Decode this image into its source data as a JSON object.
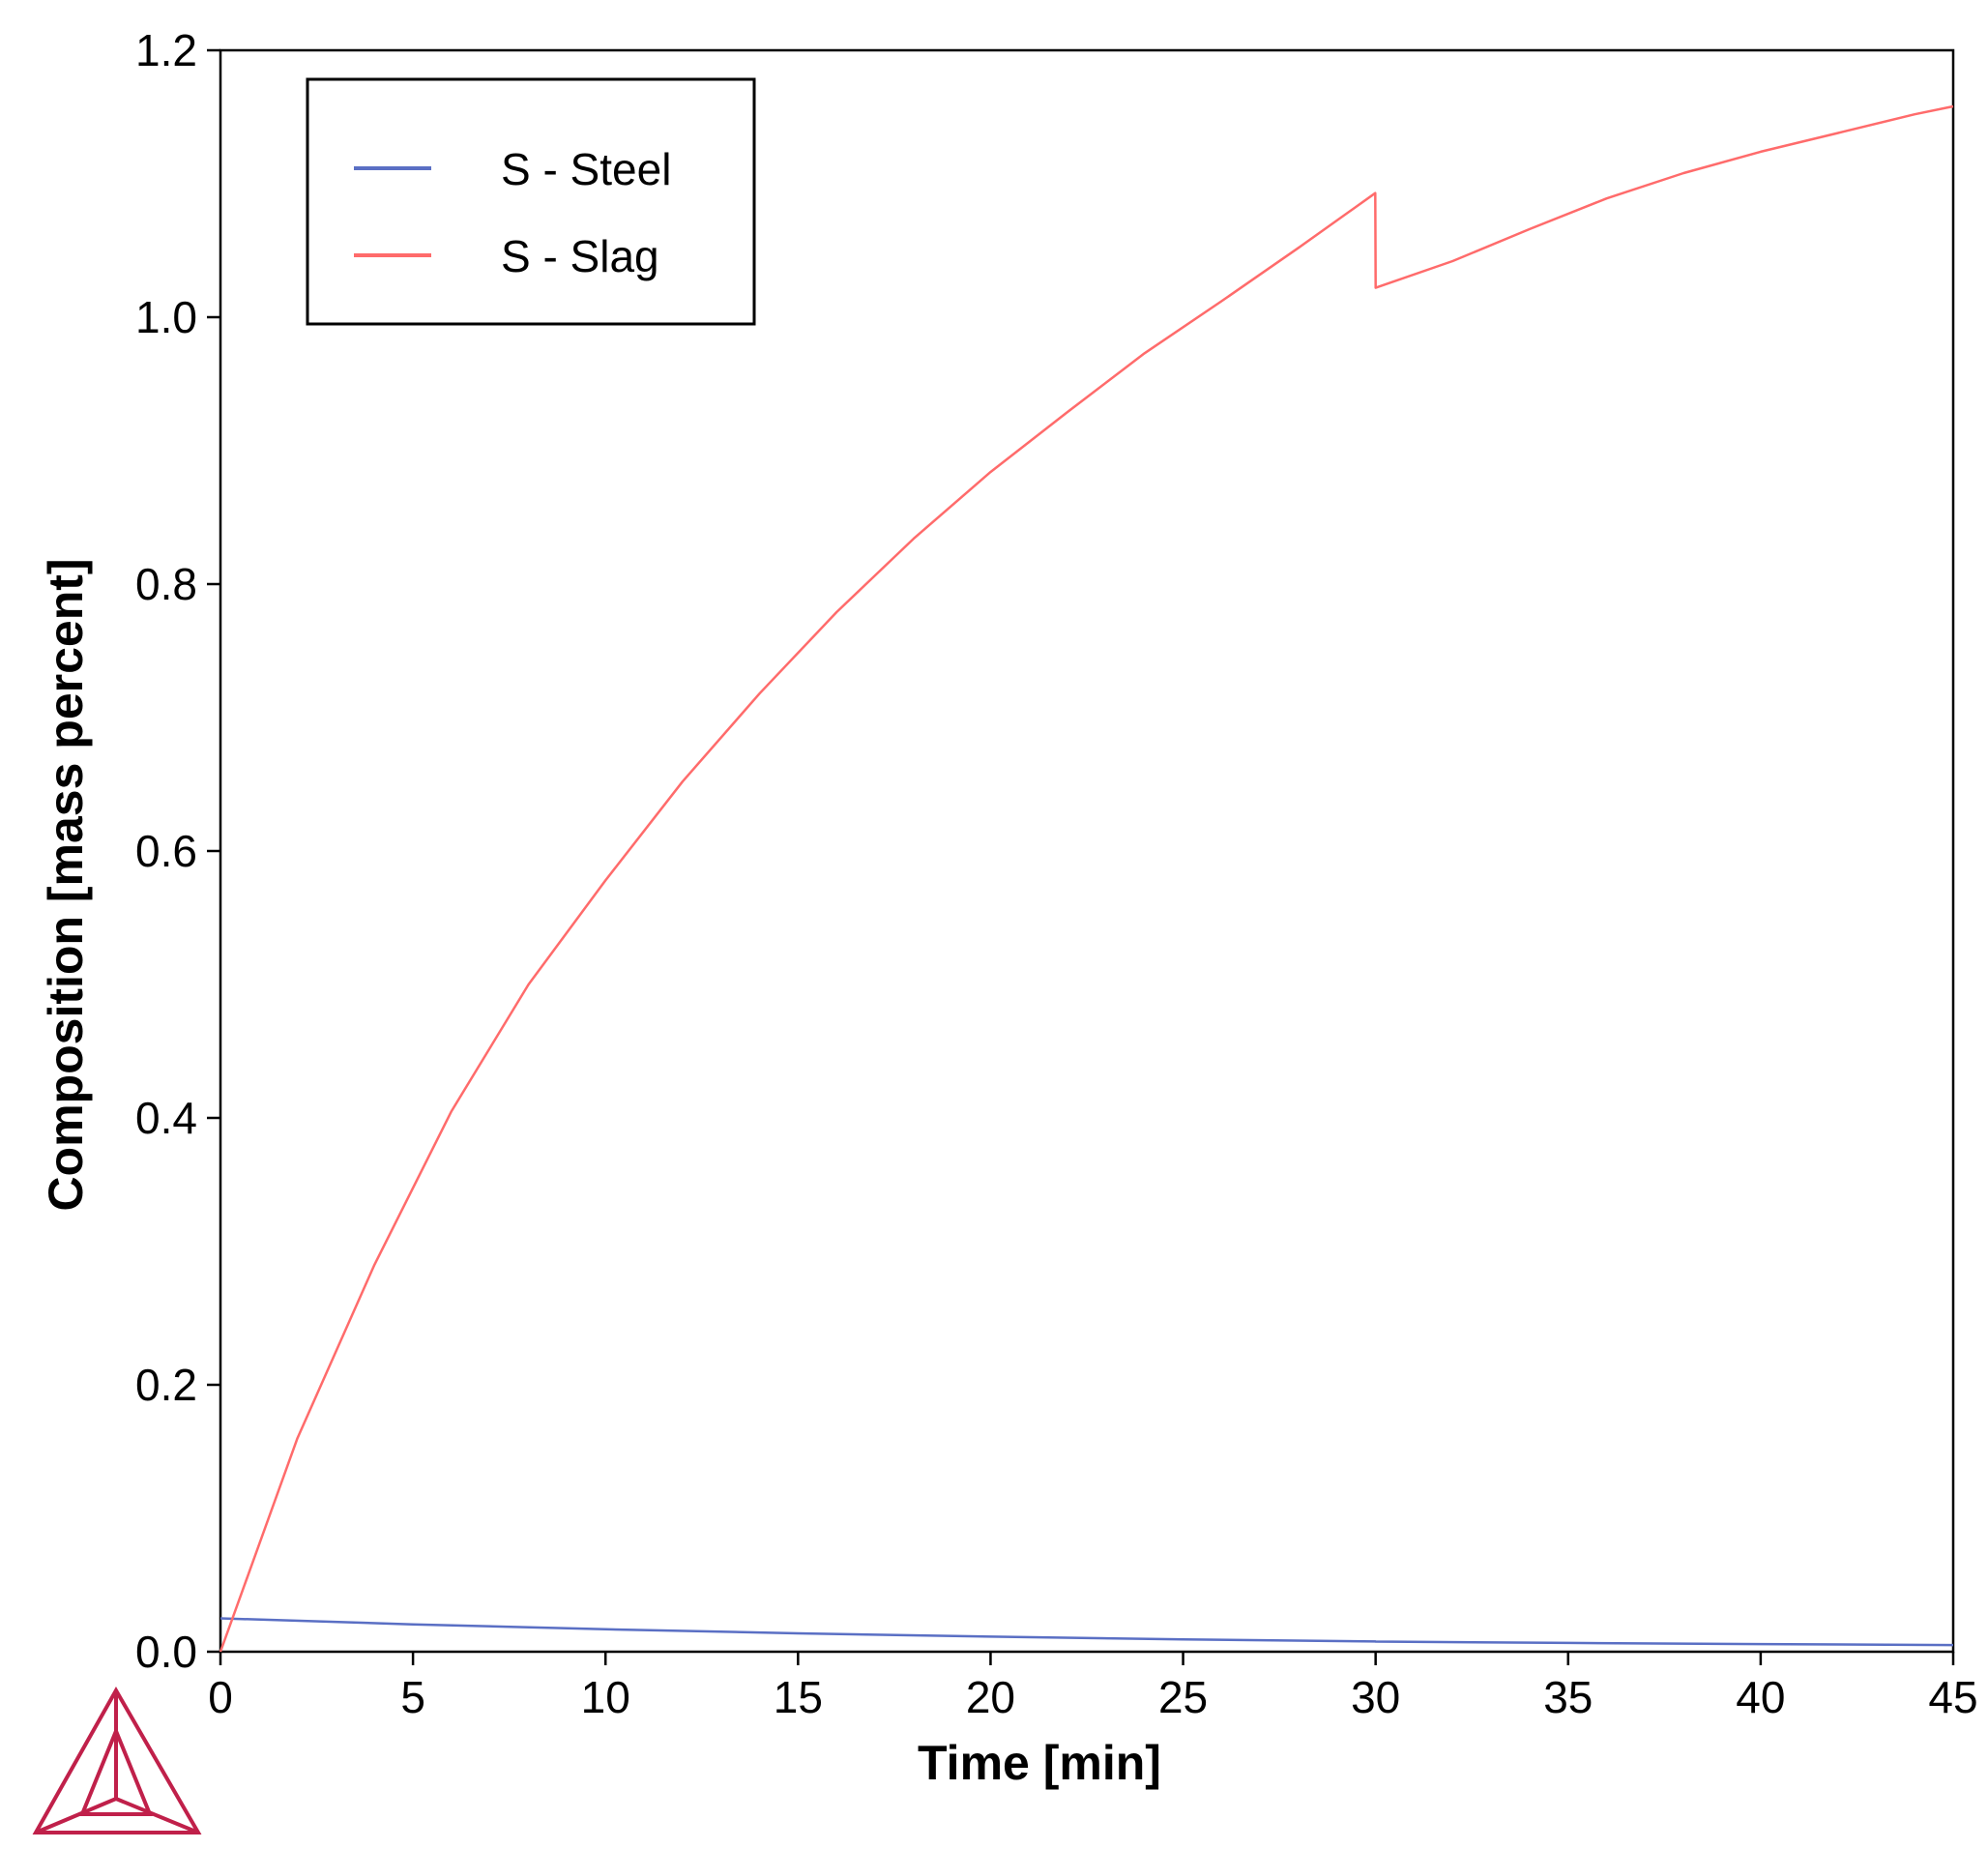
{
  "chart_data": {
    "type": "line",
    "xlabel": "Time [min]",
    "ylabel": "Composition  [mass percent]",
    "xlim": [
      0,
      45
    ],
    "ylim": [
      0,
      1.2
    ],
    "xticks": [
      0,
      5,
      10,
      15,
      20,
      25,
      30,
      35,
      40,
      45
    ],
    "yticks": [
      0.0,
      0.2,
      0.4,
      0.6,
      0.8,
      1.0,
      1.2
    ],
    "ytick_labels": [
      "0.0",
      "0.2",
      "0.4",
      "0.6",
      "0.8",
      "1.0",
      "1.2"
    ],
    "grid": false,
    "legend_position": "top-left",
    "series": [
      {
        "name": "S - Steel",
        "color": "#5a6fc4",
        "x": [
          0,
          5,
          10,
          15,
          20,
          25,
          29.99,
          30,
          35,
          40,
          45
        ],
        "y": [
          0.025,
          0.0205,
          0.0168,
          0.0138,
          0.0113,
          0.0093,
          0.0077,
          0.0076,
          0.0066,
          0.0057,
          0.005
        ]
      },
      {
        "name": "S - Slag",
        "color": "#ff6b6b",
        "x": [
          0,
          2,
          4,
          6,
          8,
          10,
          12,
          14,
          16,
          18,
          20,
          22,
          24,
          26,
          28,
          29.99,
          30,
          32,
          34,
          36,
          38,
          40,
          42,
          44,
          45
        ],
        "y": [
          0.0,
          0.16,
          0.29,
          0.405,
          0.5,
          0.578,
          0.652,
          0.718,
          0.779,
          0.834,
          0.884,
          0.929,
          0.973,
          1.012,
          1.052,
          1.093,
          1.022,
          1.042,
          1.066,
          1.089,
          1.108,
          1.124,
          1.138,
          1.152,
          1.158
        ]
      }
    ]
  },
  "logo": {
    "name": "triangle-logo-icon",
    "color": "#c0204a"
  }
}
